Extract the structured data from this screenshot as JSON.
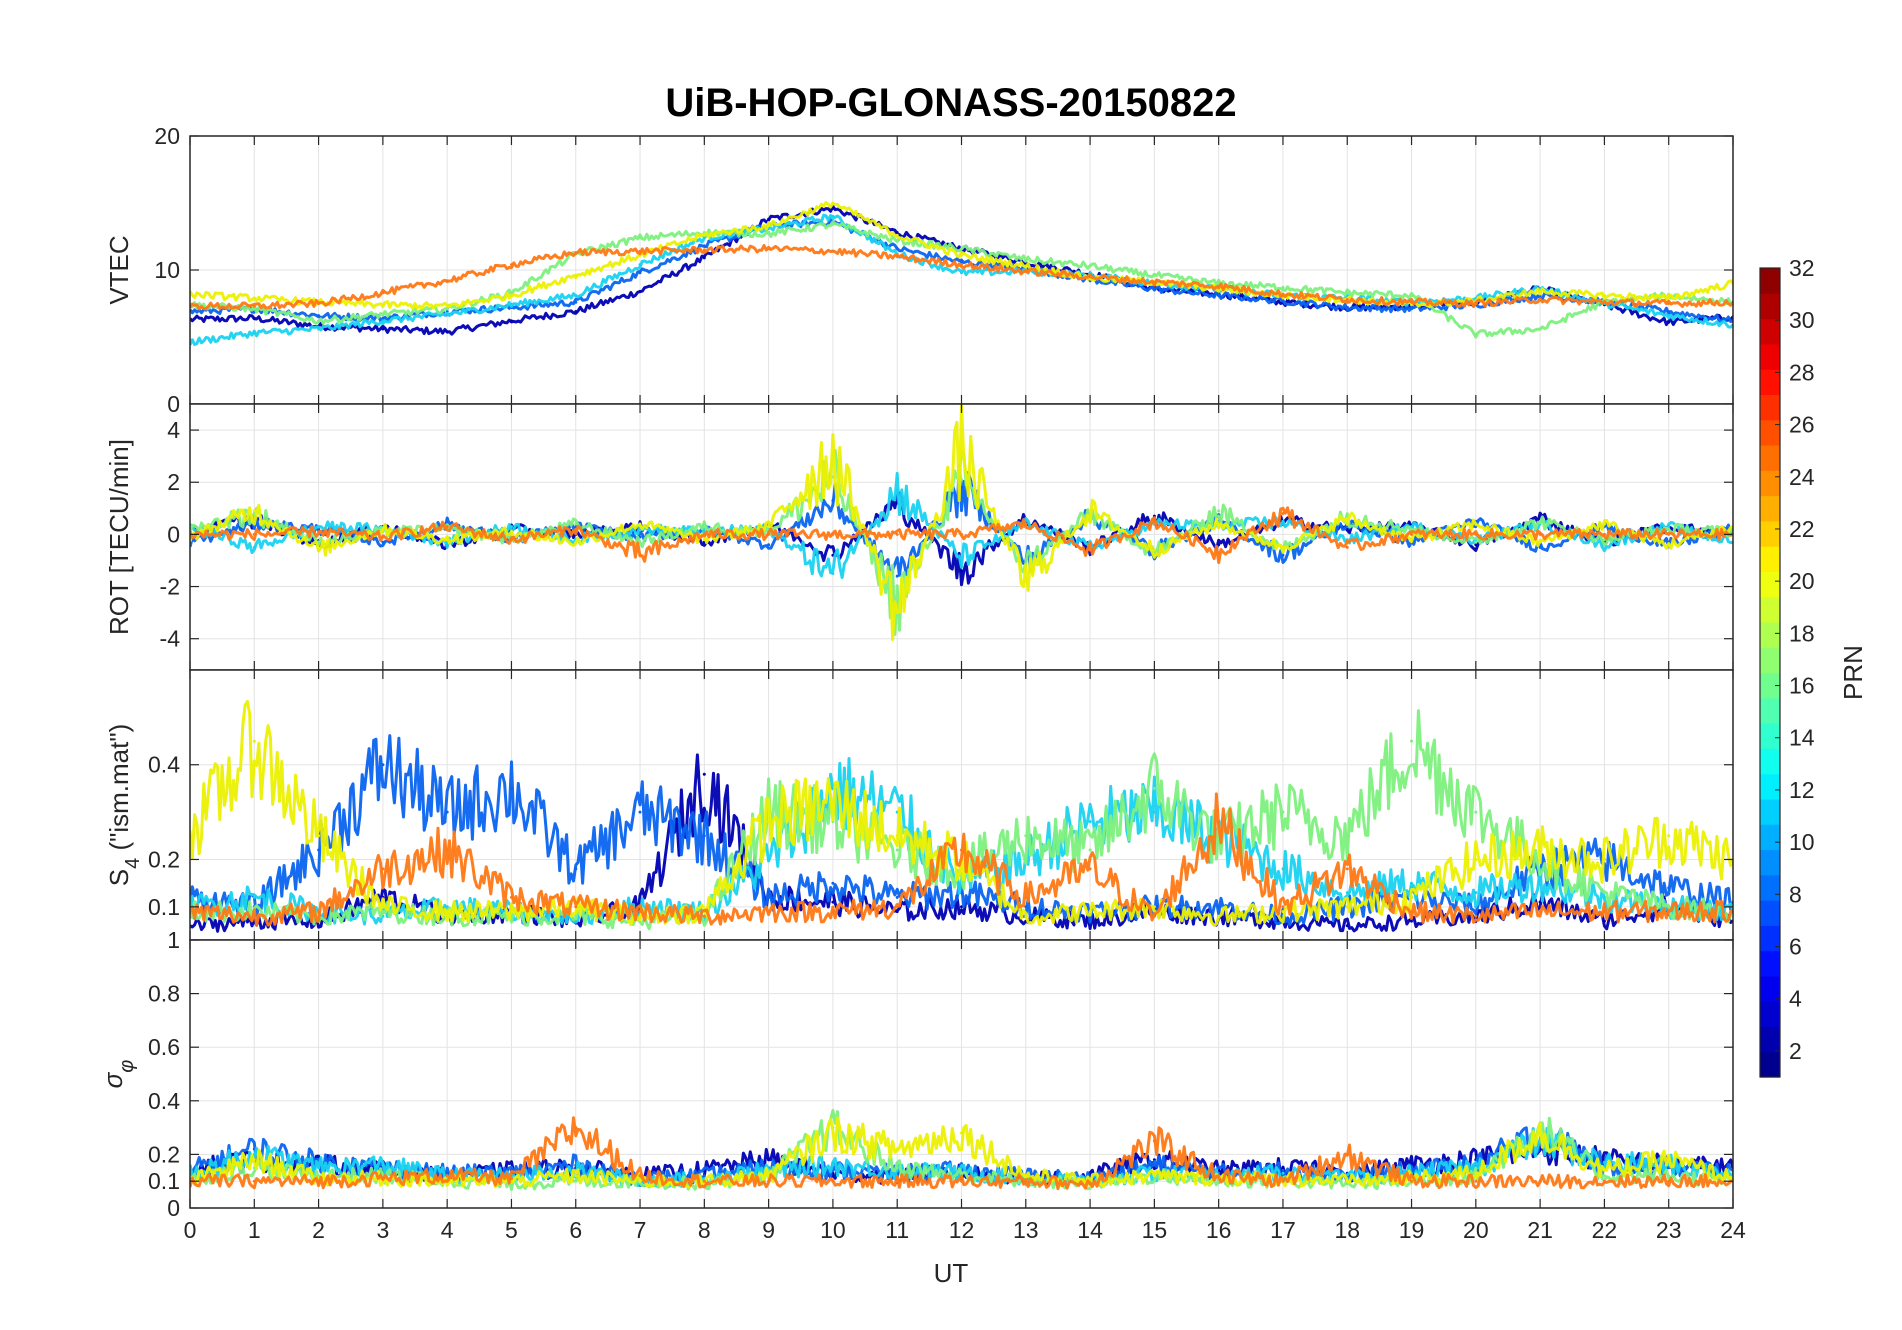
{
  "chart_data": {
    "type": "line",
    "title": "UiB-HOP-GLONASS-20150822",
    "xlabel": "UT",
    "xlim": [
      0,
      24
    ],
    "xticks": [
      "0",
      "1",
      "2",
      "3",
      "4",
      "5",
      "6",
      "7",
      "8",
      "9",
      "10",
      "11",
      "12",
      "13",
      "14",
      "15",
      "16",
      "17",
      "18",
      "19",
      "20",
      "21",
      "22",
      "23",
      "24"
    ],
    "grid": true,
    "panels": [
      {
        "ylabel": "VTEC",
        "ylim": [
          0,
          20
        ],
        "yticks": [
          0,
          10,
          20
        ],
        "ytick_labels": [
          "0",
          "10",
          "20"
        ],
        "x": [
          0,
          1,
          2,
          3,
          4,
          5,
          6,
          7,
          8,
          9,
          10,
          11,
          12,
          13,
          14,
          15,
          16,
          17,
          18,
          19,
          20,
          21,
          22,
          23,
          24
        ],
        "series": [
          {
            "color": "#0000B4",
            "values": [
              6.3,
              6.4,
              5.8,
              5.6,
              5.4,
              6.2,
              6.9,
              8.4,
              10.9,
              13.8,
              14.6,
              12.8,
              11.6,
              10.6,
              9.7,
              8.6,
              8.2,
              7.6,
              7.2,
              7.3,
              7.6,
              8.6,
              7.4,
              6.1,
              6.5
            ]
          },
          {
            "color": "#0A64F0",
            "values": [
              6.9,
              7.1,
              6.6,
              6.4,
              6.9,
              7.2,
              7.6,
              9.8,
              11.8,
              13.3,
              13.6,
              11.6,
              10.6,
              10.1,
              9.3,
              8.6,
              8.1,
              7.7,
              7.2,
              7.1,
              7.4,
              8.1,
              7.6,
              6.9,
              6.2
            ]
          },
          {
            "color": "#19D2F0",
            "values": [
              4.6,
              5.3,
              5.6,
              6.2,
              6.7,
              7.4,
              8.1,
              10.4,
              12.4,
              13.1,
              14.0,
              11.2,
              9.8,
              9.9,
              9.6,
              9.0,
              8.6,
              8.1,
              7.9,
              7.6,
              7.9,
              8.6,
              7.5,
              6.6,
              5.9
            ]
          },
          {
            "color": "#7DF07D",
            "values": [
              7.4,
              7.1,
              6.2,
              6.7,
              7.1,
              8.3,
              11.2,
              12.4,
              12.8,
              12.7,
              13.4,
              12.2,
              11.6,
              10.8,
              10.3,
              9.6,
              9.0,
              8.7,
              8.3,
              8.1,
              5.2,
              5.6,
              7.6,
              8.1,
              7.6
            ]
          },
          {
            "color": "#EBF000",
            "values": [
              8.2,
              7.9,
              7.6,
              7.4,
              7.3,
              8.1,
              9.6,
              11.1,
              12.6,
              13.3,
              15.0,
              12.6,
              11.1,
              10.3,
              9.4,
              9.1,
              8.6,
              8.1,
              7.8,
              7.4,
              7.7,
              8.4,
              8.1,
              7.9,
              9.0
            ]
          },
          {
            "color": "#FF7814",
            "values": [
              7.3,
              7.3,
              7.5,
              8.3,
              9.2,
              10.4,
              11.3,
              11.4,
              11.5,
              11.6,
              11.4,
              11.0,
              10.4,
              9.9,
              9.5,
              9.1,
              8.8,
              8.2,
              7.8,
              7.6,
              7.5,
              7.8,
              7.6,
              7.5,
              7.6
            ]
          }
        ]
      },
      {
        "ylabel": "ROT [TECU/min]",
        "ylim": [
          -5.2,
          5.0
        ],
        "yticks": [
          -4,
          -2,
          0,
          2,
          4
        ],
        "ytick_labels": [
          "-4",
          "-2",
          "0",
          "2",
          "4"
        ],
        "x": [
          0,
          1,
          2,
          3,
          4,
          5,
          6,
          7,
          8,
          9,
          10,
          11,
          12,
          13,
          14,
          15,
          16,
          17,
          18,
          19,
          20,
          21,
          22,
          23,
          24
        ],
        "series": [
          {
            "color": "#0000B4",
            "values": [
              0.1,
              0.6,
              -0.4,
              0.3,
              -0.4,
              0.2,
              0.0,
              0.3,
              -0.3,
              0.4,
              -0.8,
              1.2,
              -1.4,
              0.6,
              -0.5,
              0.7,
              -0.4,
              0.5,
              0.2,
              0.3,
              -0.4,
              0.6,
              -0.3,
              0.3,
              0.0
            ]
          },
          {
            "color": "#0A64F0",
            "values": [
              -0.3,
              0.4,
              0.2,
              -0.3,
              0.4,
              -0.2,
              0.3,
              -0.1,
              0.2,
              -0.4,
              1.3,
              -1.6,
              1.8,
              -1.0,
              0.7,
              -0.6,
              0.5,
              -0.8,
              0.4,
              -0.3,
              0.5,
              -0.5,
              0.3,
              -0.4,
              0.2
            ]
          },
          {
            "color": "#19D2F0",
            "values": [
              0.3,
              -0.5,
              0.3,
              0.2,
              -0.3,
              0.3,
              -0.2,
              0.2,
              0.1,
              0.2,
              -1.5,
              1.7,
              -0.9,
              0.4,
              -0.5,
              0.4,
              0.3,
              0.5,
              -0.2,
              0.3,
              -0.2,
              0.4,
              -0.4,
              0.3,
              -0.3
            ]
          },
          {
            "color": "#7DF07D",
            "values": [
              0.2,
              0.8,
              -0.3,
              0.1,
              0.2,
              -0.2,
              0.4,
              -0.3,
              0.3,
              0.1,
              2.2,
              -2.6,
              2.1,
              -1.2,
              0.8,
              -0.7,
              0.9,
              -0.6,
              0.7,
              0.2,
              -0.3,
              0.5,
              -0.2,
              0.2,
              0.1
            ]
          },
          {
            "color": "#EBF000",
            "values": [
              -0.1,
              0.9,
              -0.6,
              0.2,
              -0.2,
              0.1,
              -0.3,
              0.4,
              -0.2,
              0.3,
              3.1,
              -3.0,
              3.2,
              -1.8,
              0.9,
              -0.6,
              0.4,
              -0.5,
              0.6,
              -0.2,
              0.4,
              -0.3,
              0.4,
              -0.4,
              0.3
            ]
          },
          {
            "color": "#FF7814",
            "values": [
              0.0,
              0.0,
              0.1,
              -0.1,
              0.3,
              -0.2,
              0.2,
              -0.8,
              0.0,
              0.0,
              0.0,
              0.0,
              0.0,
              0.4,
              -0.6,
              0.5,
              -0.7,
              0.8,
              -0.5,
              0.0,
              0.0,
              0.0,
              0.0,
              0.0,
              0.0
            ]
          }
        ]
      },
      {
        "ylabel": "S_4 (\"ism.mat\")",
        "ylim": [
          0.03,
          0.6
        ],
        "yticks": [
          0.1,
          0.2,
          0.4
        ],
        "ytick_labels": [
          "0.1",
          "0.2",
          "0.4"
        ],
        "x": [
          0,
          1,
          2,
          3,
          4,
          5,
          6,
          7,
          8,
          9,
          10,
          11,
          12,
          13,
          14,
          15,
          16,
          17,
          18,
          19,
          20,
          21,
          22,
          23,
          24
        ],
        "series": [
          {
            "color": "#0000B4",
            "values": [
              0.06,
              0.07,
              0.07,
              0.12,
              0.08,
              0.09,
              0.07,
              0.1,
              0.38,
              0.12,
              0.11,
              0.09,
              0.1,
              0.08,
              0.07,
              0.09,
              0.08,
              0.07,
              0.06,
              0.07,
              0.08,
              0.11,
              0.07,
              0.1,
              0.07
            ]
          },
          {
            "color": "#0A64F0",
            "values": [
              0.12,
              0.1,
              0.22,
              0.4,
              0.3,
              0.35,
              0.18,
              0.3,
              0.25,
              0.12,
              0.15,
              0.12,
              0.13,
              0.1,
              0.09,
              0.1,
              0.1,
              0.08,
              0.1,
              0.12,
              0.1,
              0.18,
              0.2,
              0.14,
              0.11
            ]
          },
          {
            "color": "#19D2F0",
            "values": [
              0.1,
              0.12,
              0.09,
              0.08,
              0.1,
              0.09,
              0.08,
              0.1,
              0.09,
              0.2,
              0.35,
              0.3,
              0.15,
              0.2,
              0.28,
              0.3,
              0.25,
              0.18,
              0.13,
              0.15,
              0.13,
              0.15,
              0.12,
              0.1,
              0.09
            ]
          },
          {
            "color": "#7DF07D",
            "values": [
              0.09,
              0.09,
              0.08,
              0.09,
              0.08,
              0.08,
              0.08,
              0.07,
              0.08,
              0.3,
              0.28,
              0.22,
              0.18,
              0.25,
              0.22,
              0.35,
              0.24,
              0.3,
              0.25,
              0.45,
              0.3,
              0.2,
              0.13,
              0.1,
              0.09
            ]
          },
          {
            "color": "#EBF000",
            "values": [
              0.25,
              0.45,
              0.25,
              0.1,
              0.09,
              0.09,
              0.1,
              0.08,
              0.09,
              0.28,
              0.32,
              0.25,
              0.2,
              0.08,
              0.09,
              0.1,
              0.08,
              0.09,
              0.1,
              0.12,
              0.2,
              0.22,
              0.2,
              0.25,
              0.2
            ]
          },
          {
            "color": "#FF7814",
            "values": [
              0.09,
              0.08,
              0.09,
              0.18,
              0.22,
              0.12,
              0.1,
              0.09,
              0.08,
              0.09,
              0.09,
              0.1,
              0.22,
              0.12,
              0.18,
              0.08,
              0.28,
              0.1,
              0.18,
              0.09,
              0.08,
              0.09,
              0.09,
              0.09,
              0.09
            ]
          }
        ]
      },
      {
        "ylabel": "σ_φ",
        "ylim": [
          0,
          1
        ],
        "yticks": [
          0,
          0.1,
          0.2,
          0.4,
          0.6,
          0.8,
          1
        ],
        "ytick_labels": [
          "0",
          "0.1",
          "0.2",
          "0.4",
          "0.6",
          "0.8",
          "1"
        ],
        "x": [
          0,
          1,
          2,
          3,
          4,
          5,
          6,
          7,
          8,
          9,
          10,
          11,
          12,
          13,
          14,
          15,
          16,
          17,
          18,
          19,
          20,
          21,
          22,
          23,
          24
        ],
        "series": [
          {
            "color": "#0000B4",
            "values": [
              0.15,
              0.18,
              0.16,
              0.14,
              0.12,
              0.14,
              0.15,
              0.12,
              0.14,
              0.18,
              0.13,
              0.12,
              0.13,
              0.11,
              0.12,
              0.18,
              0.14,
              0.15,
              0.13,
              0.16,
              0.18,
              0.22,
              0.18,
              0.16,
              0.15
            ]
          },
          {
            "color": "#0A64F0",
            "values": [
              0.14,
              0.22,
              0.17,
              0.15,
              0.13,
              0.13,
              0.16,
              0.11,
              0.12,
              0.15,
              0.14,
              0.13,
              0.14,
              0.12,
              0.11,
              0.16,
              0.13,
              0.14,
              0.12,
              0.14,
              0.16,
              0.28,
              0.16,
              0.15,
              0.14
            ]
          },
          {
            "color": "#19D2F0",
            "values": [
              0.13,
              0.2,
              0.15,
              0.16,
              0.12,
              0.12,
              0.14,
              0.1,
              0.11,
              0.14,
              0.16,
              0.14,
              0.13,
              0.11,
              0.1,
              0.13,
              0.12,
              0.13,
              0.11,
              0.13,
              0.15,
              0.25,
              0.17,
              0.16,
              0.13
            ]
          },
          {
            "color": "#7DF07D",
            "values": [
              0.11,
              0.15,
              0.12,
              0.12,
              0.1,
              0.09,
              0.1,
              0.1,
              0.09,
              0.12,
              0.3,
              0.15,
              0.12,
              0.1,
              0.09,
              0.12,
              0.1,
              0.1,
              0.09,
              0.1,
              0.12,
              0.3,
              0.12,
              0.12,
              0.1
            ]
          },
          {
            "color": "#EBF000",
            "values": [
              0.1,
              0.18,
              0.11,
              0.11,
              0.1,
              0.1,
              0.12,
              0.1,
              0.1,
              0.12,
              0.28,
              0.22,
              0.28,
              0.12,
              0.1,
              0.12,
              0.11,
              0.11,
              0.1,
              0.11,
              0.13,
              0.28,
              0.14,
              0.18,
              0.11
            ]
          },
          {
            "color": "#FF7814",
            "values": [
              0.1,
              0.1,
              0.1,
              0.11,
              0.12,
              0.11,
              0.3,
              0.12,
              0.1,
              0.1,
              0.1,
              0.1,
              0.1,
              0.1,
              0.09,
              0.25,
              0.12,
              0.1,
              0.2,
              0.1,
              0.1,
              0.1,
              0.1,
              0.1,
              0.1
            ]
          }
        ]
      }
    ],
    "colorbar": {
      "label": "PRN",
      "min": 1,
      "max": 32,
      "ticks": [
        "2",
        "4",
        "6",
        "8",
        "10",
        "12",
        "14",
        "16",
        "18",
        "20",
        "22",
        "24",
        "26",
        "28",
        "30",
        "32"
      ],
      "colormap": "jet"
    }
  }
}
